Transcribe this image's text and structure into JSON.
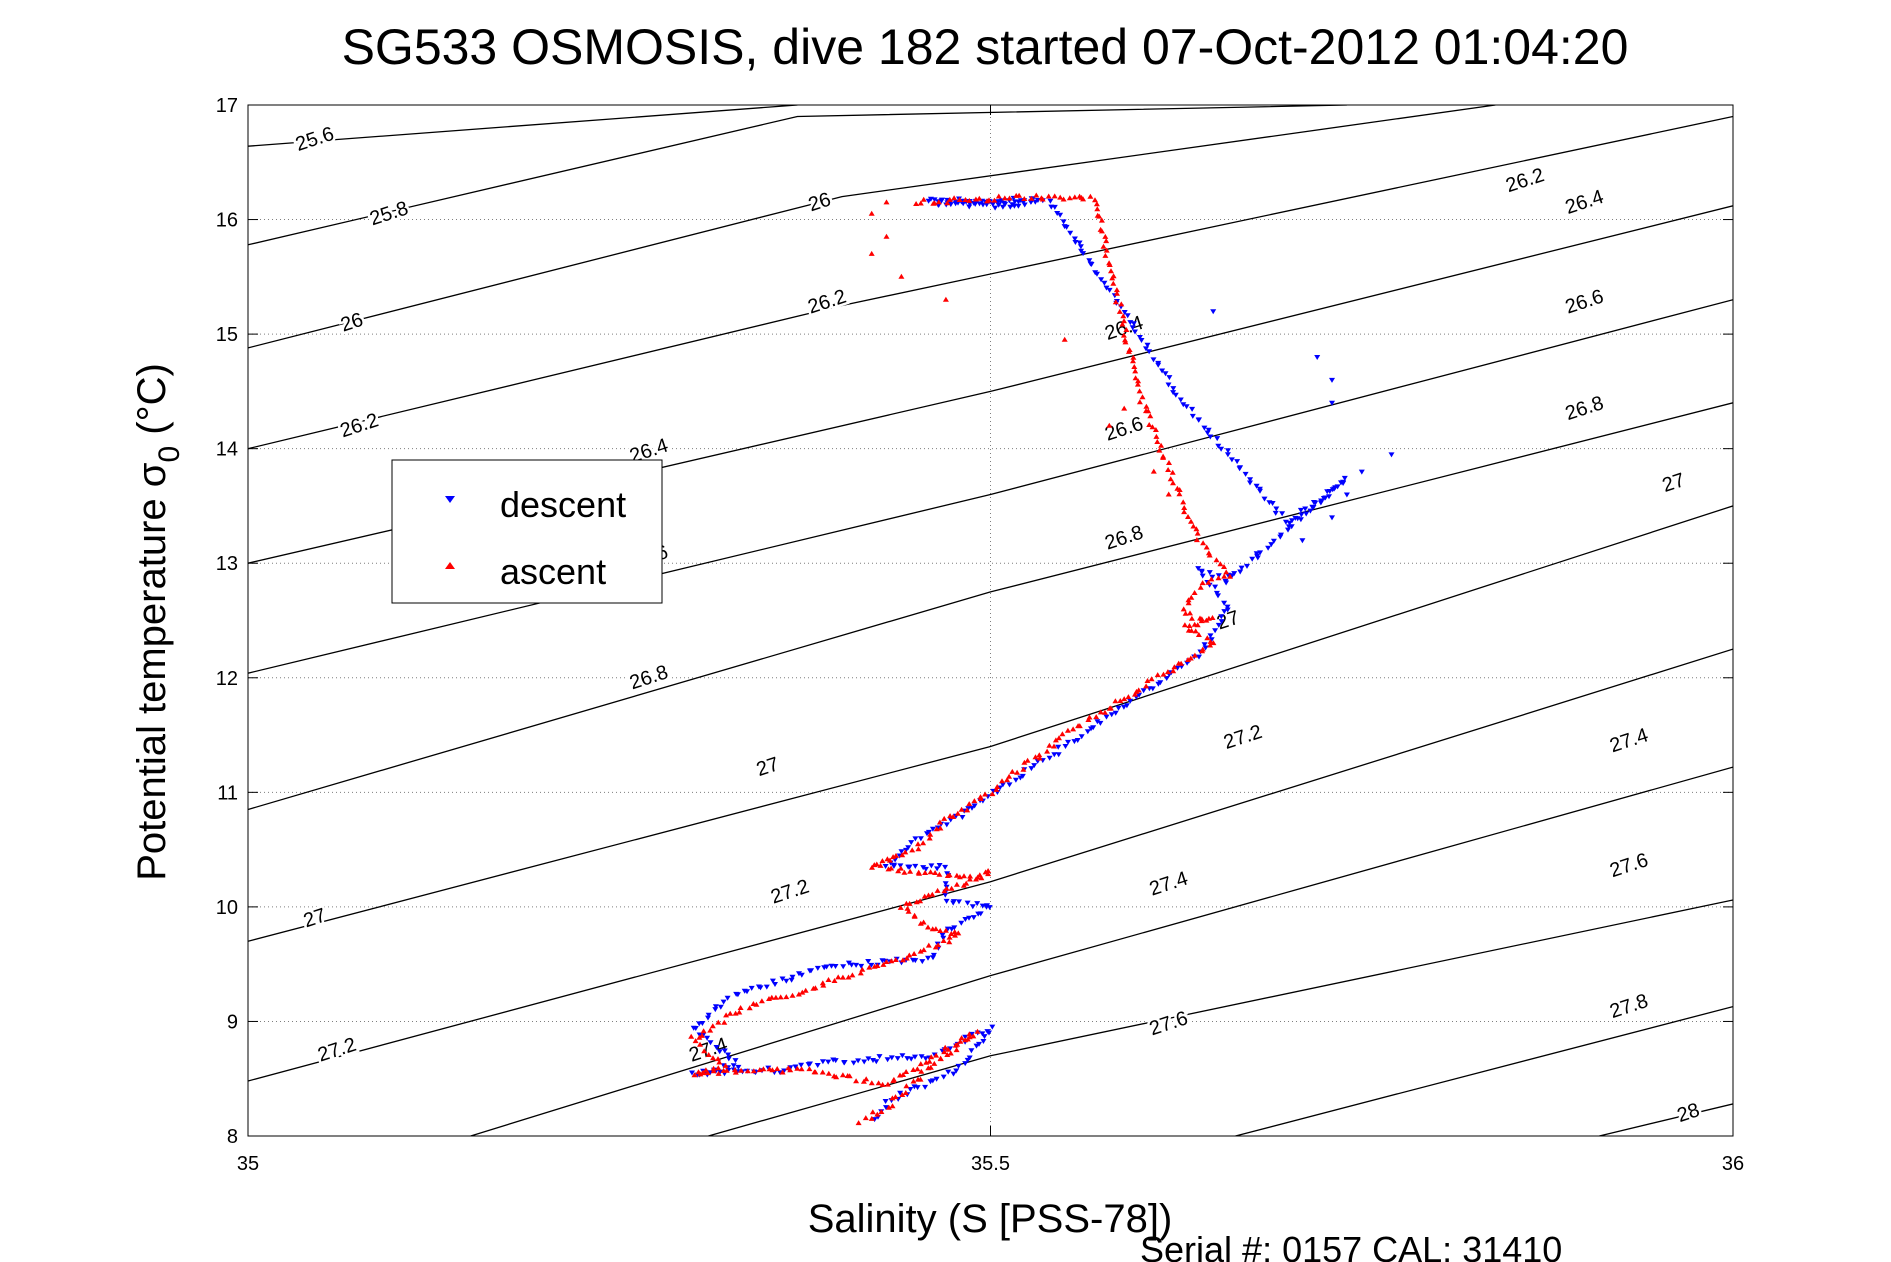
{
  "chart_data": {
    "type": "scatter",
    "title": "SG533 OSMOSIS, dive 182 started 07-Oct-2012 01:04:20",
    "xlabel": "Salinity (S [PSS-78])",
    "ylabel_main": "Potential temperature σ",
    "ylabel_sub": "0",
    "ylabel_unit": " (°C)",
    "xlim": [
      35,
      36
    ],
    "ylim": [
      8,
      17
    ],
    "x_ticks": [
      35,
      35.5,
      36
    ],
    "x_tick_labels": [
      "35",
      "35.5",
      "36"
    ],
    "y_ticks": [
      8,
      9,
      10,
      11,
      12,
      13,
      14,
      15,
      16,
      17
    ],
    "y_tick_labels": [
      "8",
      "9",
      "10",
      "11",
      "12",
      "13",
      "14",
      "15",
      "16",
      "17"
    ],
    "grid": "dotted",
    "legend_position": "upper-left",
    "footer": "Serial #: 0157  CAL: 31410",
    "contours": [
      {
        "sigma": 25.6,
        "label": "25.6",
        "line": [
          [
            35.0,
            16.64
          ],
          [
            35.37,
            17.0
          ]
        ],
        "labels": [
          [
            35.045,
            16.7
          ]
        ]
      },
      {
        "sigma": 25.8,
        "label": "25.8",
        "line": [
          [
            35.0,
            15.78
          ],
          [
            35.37,
            16.9
          ],
          [
            35.74,
            17.0
          ]
        ],
        "labels": [
          [
            35.095,
            16.05
          ]
        ]
      },
      {
        "sigma": 26.0,
        "label": "26",
        "line": [
          [
            35.0,
            14.88
          ],
          [
            35.4,
            16.2
          ],
          [
            35.84,
            17.0
          ]
        ],
        "labels": [
          [
            35.07,
            15.1
          ],
          [
            35.385,
            16.15
          ]
        ]
      },
      {
        "sigma": 26.2,
        "label": "26.2",
        "line": [
          [
            35.0,
            14.0
          ],
          [
            35.4,
            15.25
          ],
          [
            35.8,
            16.35
          ],
          [
            36.0,
            16.9
          ]
        ],
        "labels": [
          [
            35.075,
            14.2
          ],
          [
            35.39,
            15.28
          ],
          [
            35.86,
            16.34
          ]
        ]
      },
      {
        "sigma": 26.4,
        "label": "26.4",
        "line": [
          [
            35.0,
            13.0
          ],
          [
            35.5,
            14.5
          ],
          [
            36.0,
            16.12
          ]
        ],
        "labels": [
          [
            35.27,
            13.98
          ],
          [
            35.59,
            15.05
          ],
          [
            35.9,
            16.15
          ]
        ]
      },
      {
        "sigma": 26.6,
        "label": "26.6",
        "line": [
          [
            35.0,
            12.04
          ],
          [
            35.5,
            13.6
          ],
          [
            36.0,
            15.3
          ]
        ],
        "labels": [
          [
            35.27,
            13.05
          ],
          [
            35.59,
            14.17
          ],
          [
            35.9,
            15.28
          ]
        ]
      },
      {
        "sigma": 26.8,
        "label": "26.8",
        "line": [
          [
            35.0,
            10.85
          ],
          [
            35.5,
            12.75
          ],
          [
            36.0,
            14.4
          ]
        ],
        "labels": [
          [
            35.27,
            12.0
          ],
          [
            35.59,
            13.22
          ],
          [
            35.9,
            14.35
          ]
        ]
      },
      {
        "sigma": 27.0,
        "label": "27",
        "line": [
          [
            35.0,
            9.7
          ],
          [
            35.5,
            11.4
          ],
          [
            36.0,
            13.5
          ]
        ],
        "labels": [
          [
            35.045,
            9.9
          ],
          [
            35.35,
            11.22
          ],
          [
            35.66,
            12.5
          ],
          [
            35.96,
            13.7
          ]
        ]
      },
      {
        "sigma": 27.2,
        "label": "27.2",
        "line": [
          [
            35.0,
            8.48
          ],
          [
            35.5,
            10.22
          ],
          [
            36.0,
            12.25
          ]
        ],
        "labels": [
          [
            35.06,
            8.75
          ],
          [
            35.365,
            10.13
          ],
          [
            35.67,
            11.48
          ]
        ]
      },
      {
        "sigma": 27.4,
        "label": "27.4",
        "line": [
          [
            35.0,
            7.95
          ],
          [
            35.15,
            8.0
          ],
          [
            35.5,
            9.4
          ],
          [
            36.0,
            11.22
          ]
        ],
        "labels": [
          [
            35.31,
            8.75
          ],
          [
            35.62,
            10.2
          ],
          [
            35.93,
            11.45
          ]
        ]
      },
      {
        "sigma": 27.6,
        "label": "27.6",
        "line": [
          [
            35.31,
            8.0
          ],
          [
            35.5,
            8.7
          ],
          [
            36.0,
            10.06
          ]
        ],
        "labels": [
          [
            35.62,
            8.98
          ],
          [
            35.93,
            10.36
          ]
        ]
      },
      {
        "sigma": 27.8,
        "label": "27.8",
        "line": [
          [
            35.665,
            8.0
          ],
          [
            36.0,
            9.13
          ]
        ],
        "labels": [
          [
            35.93,
            9.13
          ]
        ]
      },
      {
        "sigma": 28.0,
        "label": "28",
        "line": [
          [
            35.91,
            8.0
          ],
          [
            36.0,
            8.28
          ]
        ],
        "labels": [
          [
            35.97,
            8.2
          ]
        ]
      }
    ],
    "series": [
      {
        "name": "descent",
        "color": "#0000ff",
        "marker": "triangle-down",
        "path": [
          [
            35.46,
            16.15
          ],
          [
            35.53,
            16.15
          ],
          [
            35.52,
            16.1
          ],
          [
            35.46,
            16.16
          ],
          [
            35.54,
            16.17
          ],
          [
            35.63,
            14.4
          ],
          [
            35.7,
            13.35
          ],
          [
            35.74,
            13.75
          ],
          [
            35.66,
            12.85
          ],
          [
            35.64,
            12.95
          ],
          [
            35.66,
            12.6
          ],
          [
            35.64,
            12.2
          ],
          [
            35.55,
            11.4
          ],
          [
            35.49,
            10.9
          ],
          [
            35.48,
            10.8
          ],
          [
            35.45,
            10.6
          ],
          [
            35.43,
            10.35
          ],
          [
            35.47,
            10.35
          ],
          [
            35.47,
            10.05
          ],
          [
            35.5,
            10.0
          ],
          [
            35.47,
            9.8
          ],
          [
            35.46,
            9.55
          ],
          [
            35.39,
            9.48
          ],
          [
            35.33,
            9.25
          ],
          [
            35.3,
            8.95
          ],
          [
            35.33,
            8.62
          ],
          [
            35.3,
            8.55
          ],
          [
            35.36,
            8.58
          ],
          [
            35.39,
            8.65
          ],
          [
            35.46,
            8.7
          ],
          [
            35.5,
            8.95
          ],
          [
            35.48,
            8.6
          ],
          [
            35.43,
            8.3
          ],
          [
            35.42,
            8.1
          ]
        ],
        "scatter": [
          [
            35.56,
            15.8
          ],
          [
            35.65,
            15.2
          ],
          [
            35.72,
            14.8
          ],
          [
            35.73,
            14.6
          ],
          [
            35.73,
            14.4
          ],
          [
            35.75,
            13.8
          ],
          [
            35.77,
            13.95
          ],
          [
            35.74,
            13.6
          ],
          [
            35.73,
            13.4
          ],
          [
            35.71,
            13.2
          ],
          [
            35.68,
            13.05
          ],
          [
            35.66,
            12.9
          ]
        ]
      },
      {
        "name": "ascent",
        "color": "#ff0000",
        "marker": "triangle-up",
        "path": [
          [
            35.45,
            16.15
          ],
          [
            35.53,
            16.2
          ],
          [
            35.57,
            16.18
          ],
          [
            35.6,
            14.5
          ],
          [
            35.61,
            14.15
          ],
          [
            35.63,
            13.5
          ],
          [
            35.64,
            13.2
          ],
          [
            35.66,
            12.9
          ],
          [
            35.64,
            12.8
          ],
          [
            35.63,
            12.55
          ],
          [
            35.65,
            12.5
          ],
          [
            35.63,
            12.45
          ],
          [
            35.65,
            12.3
          ],
          [
            35.55,
            11.5
          ],
          [
            35.5,
            11.0
          ],
          [
            35.47,
            10.75
          ],
          [
            35.45,
            10.5
          ],
          [
            35.42,
            10.35
          ],
          [
            35.48,
            10.25
          ],
          [
            35.5,
            10.3
          ],
          [
            35.44,
            10.0
          ],
          [
            35.46,
            9.8
          ],
          [
            35.48,
            9.75
          ],
          [
            35.44,
            9.55
          ],
          [
            35.37,
            9.25
          ],
          [
            35.33,
            9.1
          ],
          [
            35.3,
            8.85
          ],
          [
            35.32,
            8.6
          ],
          [
            35.3,
            8.55
          ],
          [
            35.37,
            8.58
          ],
          [
            35.43,
            8.45
          ],
          [
            35.47,
            8.75
          ],
          [
            35.49,
            8.9
          ],
          [
            35.46,
            8.6
          ],
          [
            35.43,
            8.25
          ],
          [
            35.41,
            8.1
          ]
        ],
        "scatter": [
          [
            35.43,
            16.15
          ],
          [
            35.42,
            16.05
          ],
          [
            35.43,
            15.85
          ],
          [
            35.42,
            15.7
          ],
          [
            35.44,
            15.5
          ],
          [
            35.47,
            15.3
          ],
          [
            35.56,
            16.2
          ],
          [
            35.55,
            14.95
          ],
          [
            35.59,
            14.35
          ],
          [
            35.58,
            14.2
          ],
          [
            35.61,
            13.8
          ],
          [
            35.62,
            13.6
          ]
        ]
      }
    ]
  },
  "legend": {
    "descent_label": "descent",
    "ascent_label": "ascent"
  }
}
